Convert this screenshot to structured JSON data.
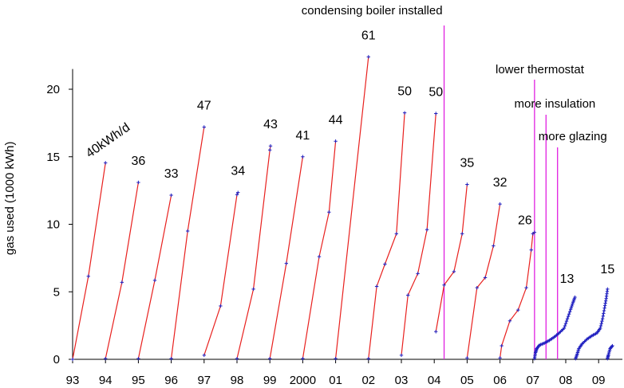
{
  "chart_data": {
    "type": "line",
    "title": "",
    "xlabel": "",
    "ylabel": "gas used (1000 kWh)",
    "x_ticks": [
      "93",
      "94",
      "95",
      "96",
      "97",
      "98",
      "99",
      "2000",
      "01",
      "02",
      "03",
      "04",
      "05",
      "06",
      "07",
      "08",
      "09"
    ],
    "x_range": [
      1993,
      2009.25
    ],
    "ylim": [
      0,
      23.5
    ],
    "y_ticks": [
      0,
      5,
      10,
      15,
      20
    ],
    "grid": false,
    "legend": "none",
    "series_color": "#e8201e",
    "marker_color": "#2020c0",
    "annotation_color": "#e020e0",
    "segments": [
      {
        "label": "40kWh/d",
        "rotated": true,
        "points": [
          [
            1993.0,
            0
          ],
          [
            1993.48,
            6.15
          ],
          [
            1994.0,
            14.55
          ]
        ]
      },
      {
        "label": "36",
        "points": [
          [
            1994.0,
            0.05
          ],
          [
            1994.5,
            5.7
          ],
          [
            1995.0,
            13.1
          ]
        ]
      },
      {
        "label": "33",
        "points": [
          [
            1995.0,
            0.05
          ],
          [
            1995.5,
            5.85
          ],
          [
            1996.0,
            12.15
          ]
        ]
      },
      {
        "label": "47",
        "points": [
          [
            1996.0,
            0.05
          ],
          [
            1996.5,
            9.5
          ],
          [
            1997.0,
            17.2
          ]
        ]
      },
      {
        "label": "34",
        "points": [
          [
            1997.0,
            0.3
          ],
          [
            1997.5,
            3.95
          ],
          [
            1998.0,
            12.2
          ],
          [
            1998.03,
            12.35
          ]
        ]
      },
      {
        "label": "43",
        "points": [
          [
            1998.0,
            0.05
          ],
          [
            1998.5,
            5.2
          ],
          [
            1999.0,
            15.5
          ],
          [
            1999.02,
            15.8
          ]
        ]
      },
      {
        "label": "41",
        "points": [
          [
            1999.0,
            0.05
          ],
          [
            1999.5,
            7.1
          ],
          [
            2000.0,
            15.0
          ]
        ]
      },
      {
        "label": "44",
        "points": [
          [
            2000.0,
            0.05
          ],
          [
            2000.5,
            7.6
          ],
          [
            2000.8,
            10.9
          ],
          [
            2001.0,
            16.15
          ]
        ]
      },
      {
        "label": "61",
        "points": [
          [
            2001.0,
            0.05
          ],
          [
            2002.0,
            22.4
          ]
        ]
      },
      {
        "label": "50",
        "points": [
          [
            2002.0,
            0.05
          ],
          [
            2002.25,
            5.4
          ],
          [
            2002.5,
            7.05
          ],
          [
            2002.85,
            9.3
          ],
          [
            2003.1,
            18.25
          ]
        ]
      },
      {
        "label": "50",
        "points": [
          [
            2003.0,
            0.3
          ],
          [
            2003.2,
            4.75
          ],
          [
            2003.5,
            6.35
          ],
          [
            2003.78,
            9.6
          ],
          [
            2004.05,
            18.2
          ]
        ]
      },
      {
        "label": "35",
        "points": [
          [
            2004.05,
            2.05
          ],
          [
            2004.3,
            5.5
          ],
          [
            2004.6,
            6.5
          ],
          [
            2004.85,
            9.3
          ],
          [
            2005.0,
            12.95
          ]
        ]
      },
      {
        "label": "32",
        "points": [
          [
            2005.0,
            0.1
          ],
          [
            2005.3,
            5.3
          ],
          [
            2005.55,
            6.05
          ],
          [
            2005.8,
            8.4
          ],
          [
            2006.0,
            11.5
          ]
        ]
      },
      {
        "label": "26",
        "points": [
          [
            2006.0,
            0.1
          ],
          [
            2006.05,
            1.0
          ],
          [
            2006.3,
            2.85
          ],
          [
            2006.55,
            3.65
          ],
          [
            2006.8,
            5.3
          ],
          [
            2006.95,
            8.1
          ],
          [
            2007.0,
            9.3
          ],
          [
            2007.05,
            9.4
          ]
        ]
      }
    ],
    "dense_segments": [
      {
        "label": "13",
        "points": [
          [
            2007.05,
            0.05
          ],
          [
            2007.08,
            0.5
          ],
          [
            2007.12,
            0.8
          ],
          [
            2007.2,
            1.05
          ],
          [
            2007.35,
            1.2
          ],
          [
            2007.5,
            1.4
          ],
          [
            2007.65,
            1.65
          ],
          [
            2007.8,
            1.95
          ],
          [
            2007.95,
            2.3
          ],
          [
            2008.05,
            3.0
          ],
          [
            2008.15,
            3.7
          ],
          [
            2008.22,
            4.2
          ],
          [
            2008.28,
            4.6
          ]
        ]
      },
      {
        "label": "15",
        "points": [
          [
            2008.3,
            0.05
          ],
          [
            2008.35,
            0.4
          ],
          [
            2008.4,
            0.8
          ],
          [
            2008.5,
            1.15
          ],
          [
            2008.65,
            1.5
          ],
          [
            2008.8,
            1.75
          ],
          [
            2008.95,
            1.95
          ],
          [
            2009.05,
            2.3
          ],
          [
            2009.12,
            3.0
          ],
          [
            2009.18,
            3.8
          ],
          [
            2009.23,
            4.5
          ],
          [
            2009.27,
            5.2
          ]
        ]
      },
      {
        "label": "",
        "points": [
          [
            2009.27,
            0.05
          ],
          [
            2009.3,
            0.35
          ],
          [
            2009.35,
            0.8
          ],
          [
            2009.42,
            1.0
          ]
        ]
      }
    ],
    "annotations": [
      {
        "text": "condensing boiler installed",
        "x": 2004.3
      },
      {
        "text": "lower thermostat",
        "x": 2007.05
      },
      {
        "text": "more insulation",
        "x": 2007.4
      },
      {
        "text": "more glazing",
        "x": 2007.75
      }
    ]
  }
}
